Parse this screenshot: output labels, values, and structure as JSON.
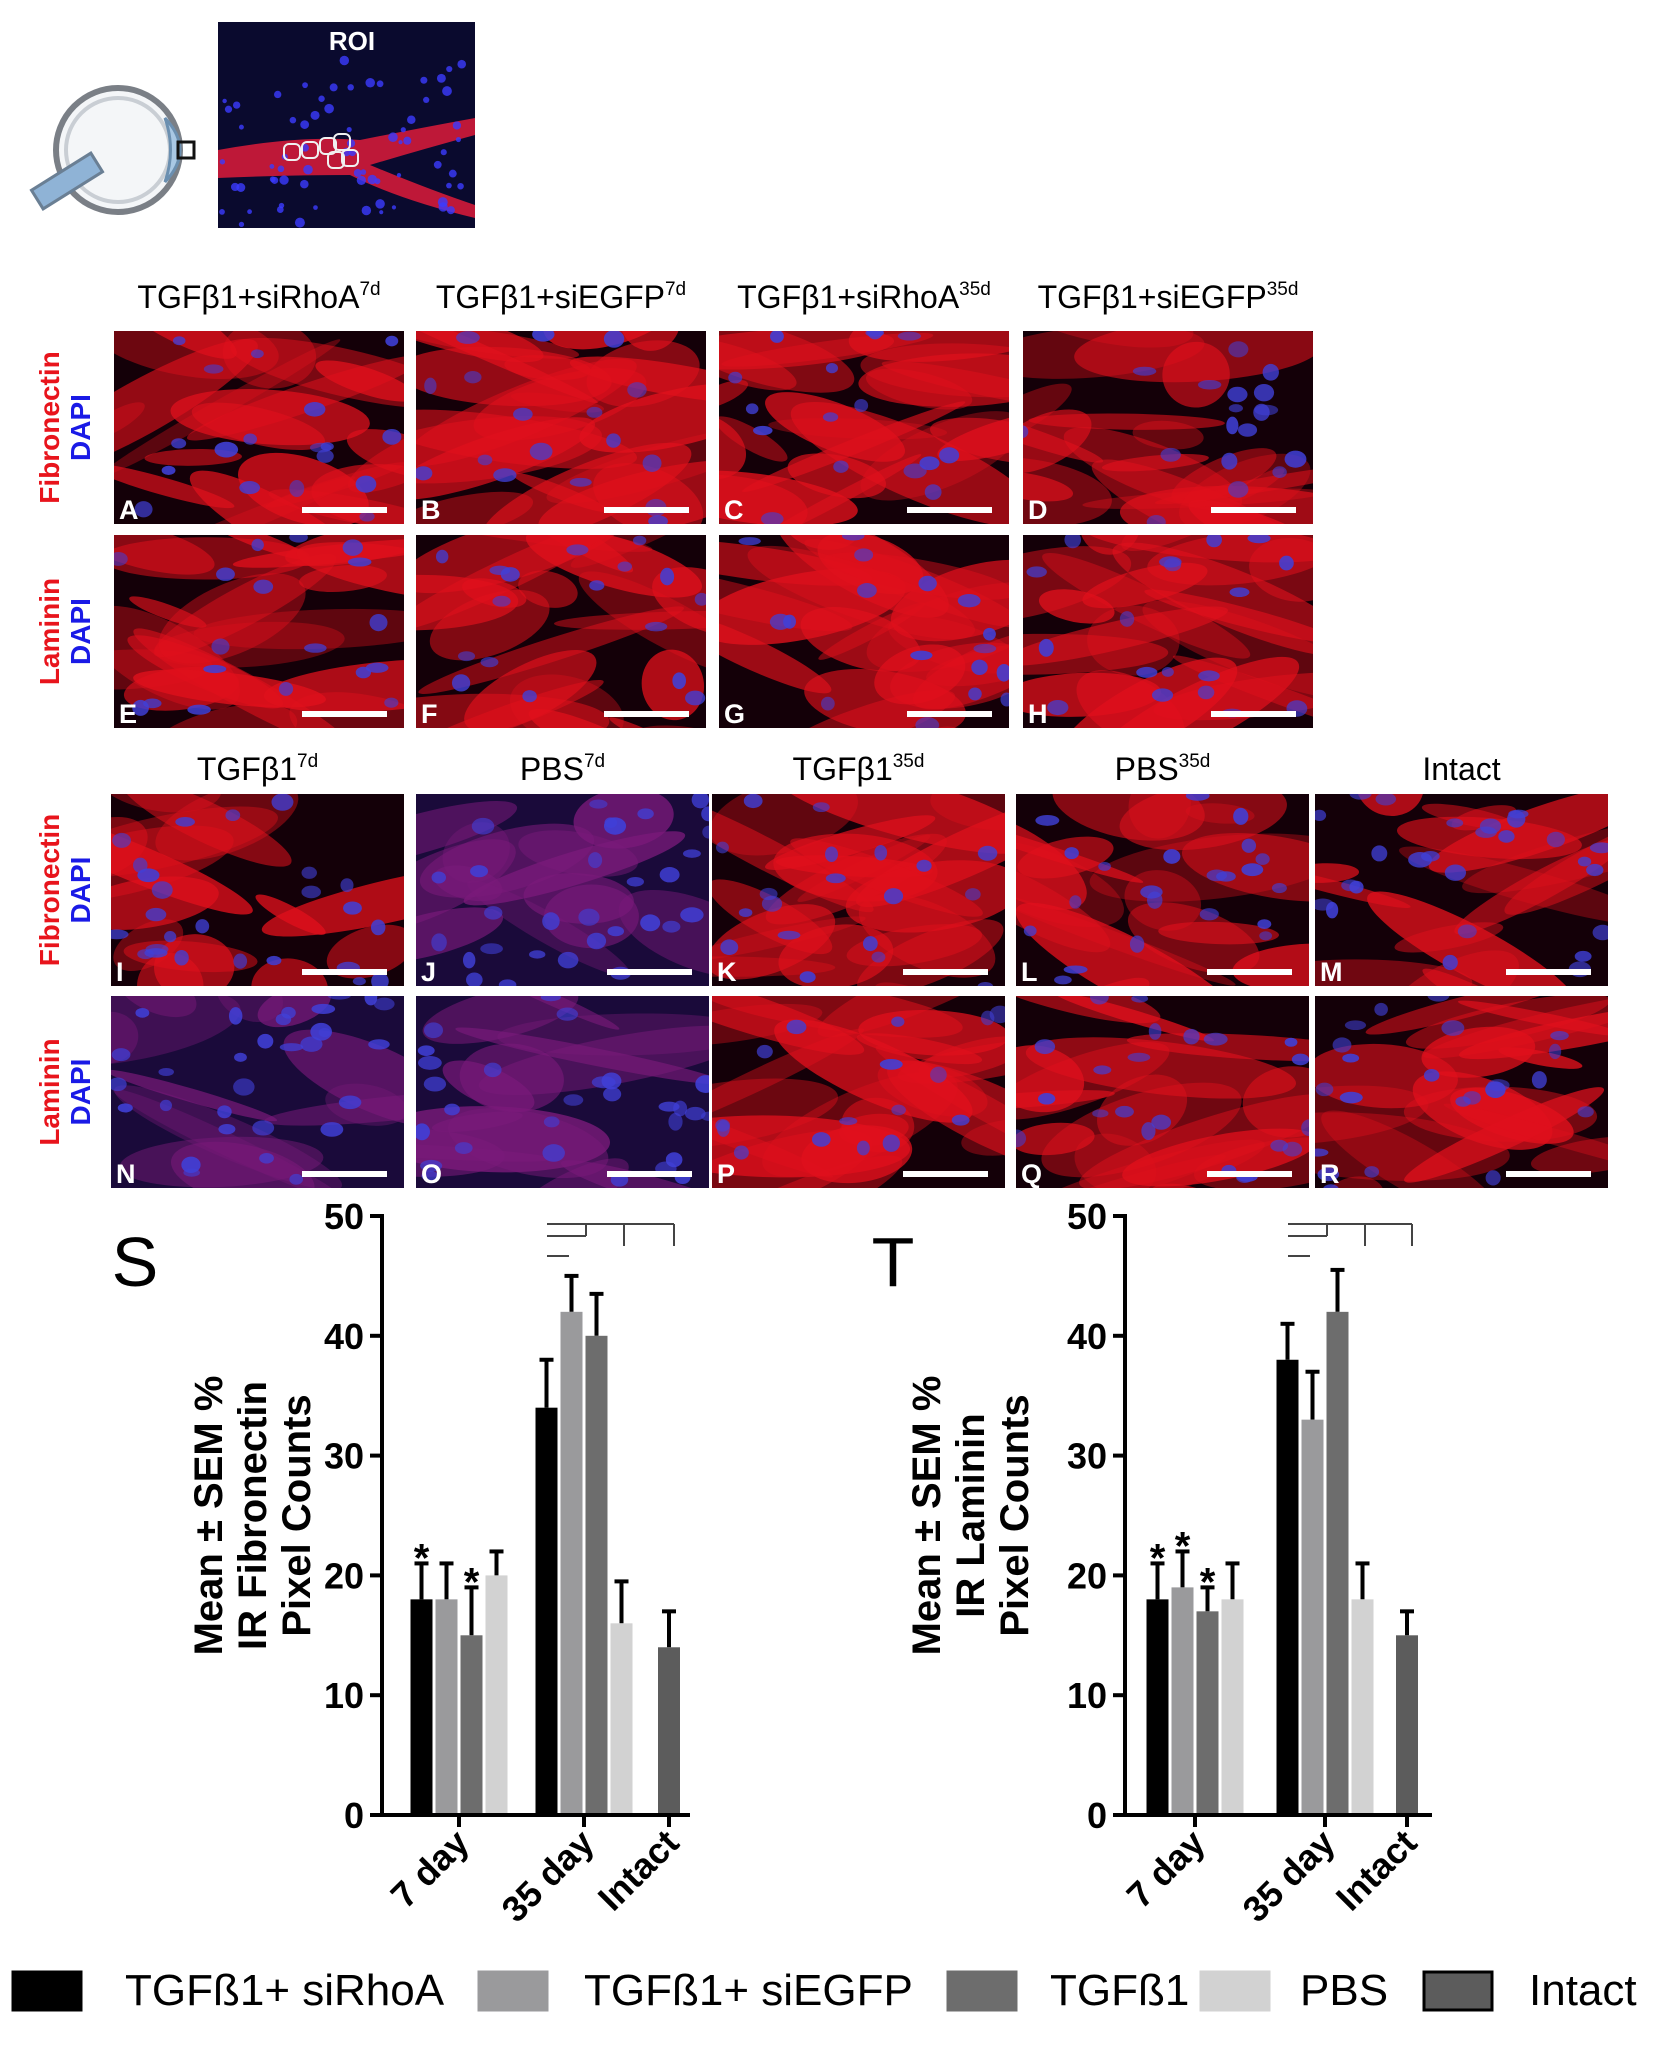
{
  "roi": {
    "label": "ROI"
  },
  "image_sets": [
    {
      "columns": [
        {
          "text": "TGFβ1+siRhoA",
          "sup": "7d"
        },
        {
          "text": "TGFβ1+siEGFP",
          "sup": "7d"
        },
        {
          "text": "TGFβ1+siRhoA",
          "sup": "35d"
        },
        {
          "text": "TGFβ1+siEGFP",
          "sup": "35d"
        }
      ],
      "rows": [
        {
          "stain": "Fibronectin",
          "counterstain": "DAPI",
          "panels": [
            "A",
            "B",
            "C",
            "D"
          ]
        },
        {
          "stain": "Laminin",
          "counterstain": "DAPI",
          "panels": [
            "E",
            "F",
            "G",
            "H"
          ]
        }
      ]
    },
    {
      "columns": [
        {
          "text": "TGFβ1",
          "sup": "7d"
        },
        {
          "text": "PBS",
          "sup": "7d"
        },
        {
          "text": "TGFβ1",
          "sup": "35d"
        },
        {
          "text": "PBS",
          "sup": "35d"
        },
        {
          "text": "Intact"
        }
      ],
      "rows": [
        {
          "stain": "Fibronectin",
          "counterstain": "DAPI",
          "panels": [
            "I",
            "J",
            "K",
            "L",
            "M"
          ]
        },
        {
          "stain": "Laminin",
          "counterstain": "DAPI",
          "panels": [
            "N",
            "O",
            "P",
            "Q",
            "R"
          ]
        }
      ]
    }
  ],
  "chart_data": [
    {
      "type": "bar",
      "panel": "S",
      "ylabel": [
        "Mean ± SEM %",
        "IR Fibronectin",
        "Pixel Counts"
      ],
      "categories": [
        "7 day",
        "35 day",
        "Intact"
      ],
      "series": [
        {
          "name": "TGFß1+ siRhoA",
          "color": "#000000",
          "values": [
            18,
            34,
            null
          ],
          "errors": [
            3,
            4,
            null
          ]
        },
        {
          "name": "TGFß1+ siEGFP",
          "color": "#9a9a9c",
          "values": [
            18,
            42,
            null
          ],
          "errors": [
            3,
            3,
            null
          ]
        },
        {
          "name": "TGFß1",
          "color": "#6d6d6d",
          "values": [
            15,
            40,
            null
          ],
          "errors": [
            4,
            3.5,
            null
          ]
        },
        {
          "name": "PBS",
          "color": "#d2d2d2",
          "values": [
            20,
            16,
            null
          ],
          "errors": [
            2,
            3.5,
            null
          ]
        },
        {
          "name": "Intact",
          "color": "#5c5c5c",
          "values": [
            null,
            null,
            14
          ],
          "errors": [
            null,
            null,
            3
          ]
        }
      ],
      "annotations": [
        {
          "text": "*",
          "series": 0,
          "category": 0
        },
        {
          "text": "*",
          "series": 2,
          "category": 0
        }
      ],
      "ylim": [
        0,
        50
      ],
      "yticks": [
        0,
        10,
        20,
        30,
        40,
        50
      ]
    },
    {
      "type": "bar",
      "panel": "T",
      "ylabel": [
        "Mean ± SEM %",
        "IR Laminin",
        "Pixel Counts"
      ],
      "categories": [
        "7 day",
        "35 day",
        "Intact"
      ],
      "series": [
        {
          "color": "#000000",
          "values": [
            18,
            38,
            null
          ],
          "errors": [
            3,
            3,
            null
          ]
        },
        {
          "color": "#9a9a9c",
          "values": [
            19,
            33,
            null
          ],
          "errors": [
            3,
            4,
            null
          ]
        },
        {
          "color": "#6d6d6d",
          "values": [
            17,
            42,
            null
          ],
          "errors": [
            2,
            3.5,
            null
          ]
        },
        {
          "color": "#d2d2d2",
          "values": [
            18,
            18,
            null
          ],
          "errors": [
            3,
            3,
            null
          ]
        },
        {
          "color": "#5c5c5c",
          "values": [
            null,
            null,
            15
          ],
          "errors": [
            null,
            null,
            2
          ]
        }
      ],
      "annotations": [
        {
          "text": "*",
          "series": 0,
          "category": 0
        },
        {
          "text": "*",
          "series": 1,
          "category": 0
        },
        {
          "text": "*",
          "series": 2,
          "category": 0
        }
      ],
      "ylim": [
        0,
        50
      ],
      "yticks": [
        0,
        10,
        20,
        30,
        40,
        50
      ]
    }
  ]
}
